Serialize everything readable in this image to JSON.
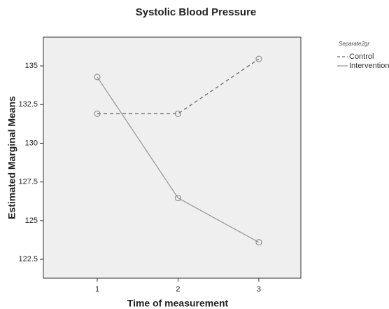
{
  "chart_data": {
    "type": "line",
    "title": "Systolic Blood Pressure",
    "x_label": "Time of measurement",
    "y_label": "Estimated Marginal Means",
    "legend_title": "Separate2gr",
    "legend_position": "right",
    "x": [
      1,
      2,
      3
    ],
    "xlim": [
      0.333,
      3.52
    ],
    "xticks": [
      1,
      2,
      3
    ],
    "ylim": [
      121.28,
      136.86
    ],
    "yticks": [
      122.5,
      125,
      127.5,
      130,
      132.5,
      135
    ],
    "series": [
      {
        "name": "Control",
        "color": "#6a6a6a",
        "line_style": "dashed",
        "values": [
          131.91,
          131.91,
          135.45
        ]
      },
      {
        "name": "Intervention",
        "color": "#9a9a9a",
        "line_style": "solid",
        "values": [
          134.28,
          126.46,
          123.6
        ]
      }
    ]
  }
}
